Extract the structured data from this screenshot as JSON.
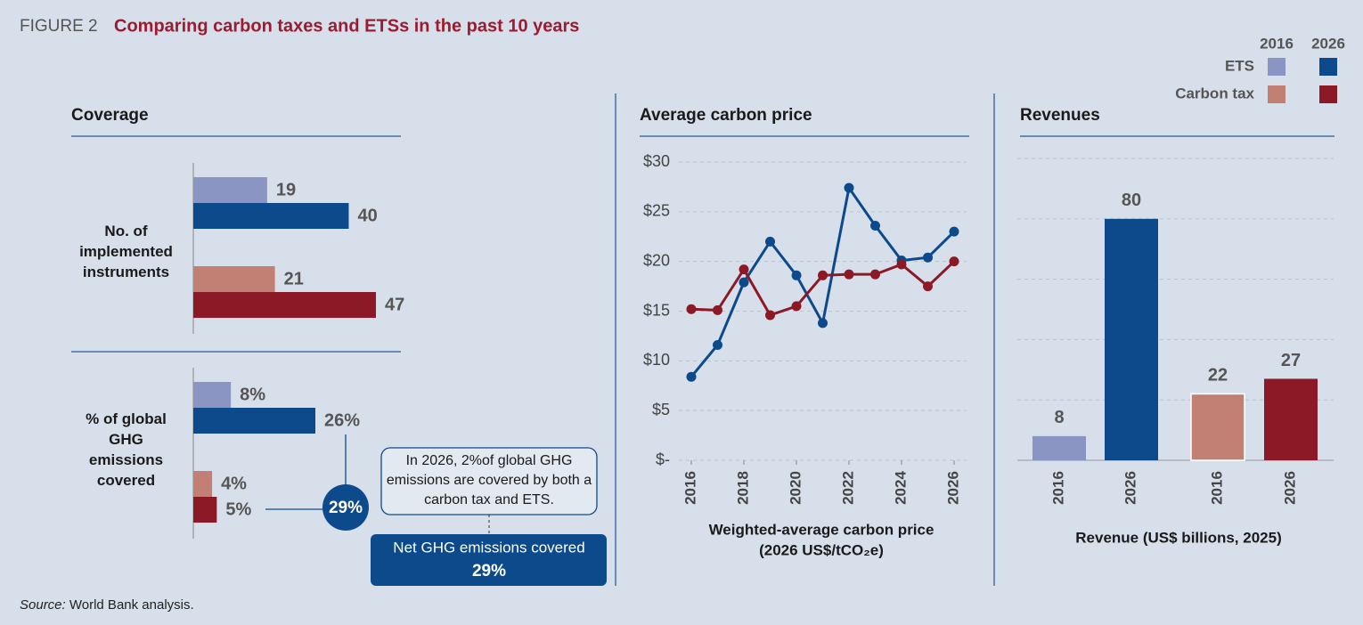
{
  "figure_label": "FIGURE 2",
  "title": "Comparing carbon taxes and ETSs in the past 10 years",
  "source_label": "Source:",
  "source": " World Bank analysis.",
  "legend": {
    "columns": [
      "2016",
      "2026"
    ],
    "rows": [
      "ETS",
      "Carbon tax"
    ],
    "colors": [
      [
        "#8b95c4",
        "#0d4a8c"
      ],
      [
        "#c27f73",
        "#8b1a26"
      ]
    ]
  },
  "chart_data": [
    {
      "type": "hbar",
      "title": "Coverage",
      "categories": [
        "No. of implemented instruments"
      ],
      "series": [
        {
          "color": "#8b95c4",
          "values": [
            19
          ]
        },
        {
          "color": "#0d4a8c",
          "values": [
            40
          ]
        },
        {
          "color": "#c27f73",
          "values": [
            21
          ]
        },
        {
          "color": "#8b1a26",
          "values": [
            47
          ]
        }
      ]
    },
    {
      "type": "hbar",
      "categories": [
        "% of global GHG emissions covered"
      ],
      "series": [
        {
          "color": "#8b95c4",
          "values": [
            8
          ],
          "value_labels": [
            "8%"
          ]
        },
        {
          "color": "#0d4a8c",
          "values": [
            26
          ],
          "value_labels": [
            "26%"
          ]
        },
        {
          "color": "#c27f73",
          "values": [
            4
          ],
          "value_labels": [
            "4%"
          ]
        },
        {
          "color": "#8b1a26",
          "values": [
            5
          ],
          "value_labels": [
            "5%"
          ]
        }
      ],
      "net_value": 29,
      "net_value_label": "29%",
      "annotation": "In 2026, 2%of global GHG emissions are covered by both a carbon tax and ETS.",
      "net_label": "Net GHG emissions covered",
      "net_box_label": "29%"
    },
    {
      "type": "line",
      "title": "Average carbon price",
      "x": [
        2016,
        2017,
        2018,
        2019,
        2020,
        2021,
        2022,
        2023,
        2024,
        2025,
        2026
      ],
      "xlim": [
        2016,
        2026
      ],
      "xticks": [
        2016,
        2018,
        2020,
        2022,
        2024,
        2026
      ],
      "ylim": [
        0,
        30
      ],
      "yticks": [
        {
          "value": 0,
          "label": "$-"
        },
        {
          "value": 5,
          "label": "$5"
        },
        {
          "value": 10,
          "label": "$10"
        },
        {
          "value": 15,
          "label": "$15"
        },
        {
          "value": 20,
          "label": "$20"
        },
        {
          "value": 25,
          "label": "$25"
        },
        {
          "value": 30,
          "label": "$30"
        }
      ],
      "grid": true,
      "xlabel": [
        "Weighted-average carbon price",
        "(2026 US$/tCO₂e)"
      ],
      "series": [
        {
          "color": "#0d4a8c",
          "values": [
            8.4,
            11.6,
            17.9,
            22.0,
            18.6,
            13.8,
            27.4,
            23.6,
            20.1,
            20.4,
            23.0
          ]
        },
        {
          "color": "#8b1a26",
          "values": [
            15.2,
            15.1,
            19.2,
            14.6,
            15.5,
            18.6,
            18.7,
            18.7,
            19.7,
            17.5,
            20.0
          ]
        }
      ]
    },
    {
      "type": "bar",
      "title": "Revenues",
      "categories": [
        "2016",
        "2026",
        "2016",
        "2026"
      ],
      "values": [
        8,
        80,
        22,
        27
      ],
      "colors": [
        "#8b95c4",
        "#0d4a8c",
        "#c27f73",
        "#8b1a26"
      ],
      "ylim": [
        0,
        100
      ],
      "yticks": [
        0,
        20,
        40,
        60,
        80,
        100
      ],
      "grid": true,
      "xlabel": "Revenue (US$ billions, 2025)"
    }
  ]
}
